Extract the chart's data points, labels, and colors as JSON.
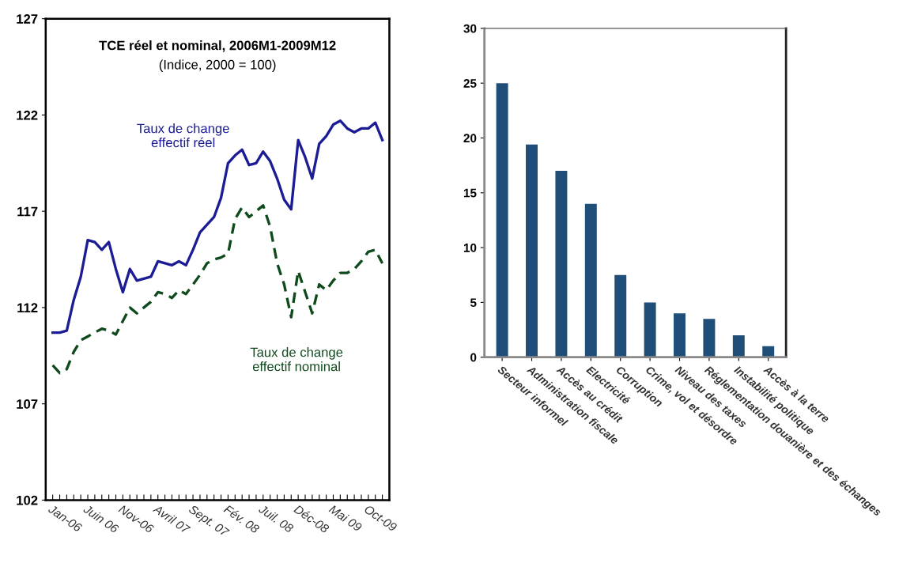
{
  "chart_data": [
    {
      "type": "line",
      "title": "TCE réel et nominal, 2006M1-2009M12",
      "subtitle": "(Indice, 2000 = 100)",
      "categories": [
        "Jan-06",
        null,
        null,
        null,
        null,
        "Juin 06",
        null,
        null,
        null,
        null,
        "Nov-06",
        null,
        null,
        null,
        null,
        "Avril 07",
        null,
        null,
        null,
        null,
        "Sept. 07",
        null,
        null,
        null,
        null,
        "Fév. 08",
        null,
        null,
        null,
        null,
        "Juil. 08",
        null,
        null,
        null,
        null,
        "Déc-08",
        null,
        null,
        null,
        null,
        "Mai 09",
        null,
        null,
        null,
        null,
        "Oct-09",
        null,
        null
      ],
      "series": [
        {
          "name": "Taux de change\neffectif réel",
          "color": "#1c1c94",
          "line_style": "solid",
          "values": [
            110.7,
            110.7,
            110.8,
            112.4,
            113.6,
            115.5,
            115.4,
            115.0,
            115.4,
            114.0,
            112.8,
            114.0,
            113.4,
            113.5,
            113.6,
            114.4,
            114.3,
            114.2,
            114.4,
            114.2,
            115.0,
            115.9,
            116.3,
            116.7,
            117.7,
            119.5,
            119.9,
            120.2,
            119.4,
            119.5,
            120.1,
            119.6,
            118.7,
            117.6,
            117.1,
            120.7,
            119.8,
            118.7,
            120.5,
            120.9,
            121.5,
            121.7,
            121.3,
            121.1,
            121.3,
            121.3,
            121.6,
            120.7
          ]
        },
        {
          "name": "Taux de change\neffectif nominal",
          "color": "#0f4a1c",
          "line_style": "dashed",
          "values": [
            109.0,
            108.6,
            108.8,
            109.7,
            110.3,
            110.5,
            110.7,
            110.9,
            110.8,
            110.6,
            111.3,
            112.0,
            111.7,
            112.0,
            112.3,
            112.8,
            112.7,
            112.5,
            112.9,
            112.7,
            113.2,
            113.7,
            114.3,
            114.5,
            114.6,
            114.8,
            116.6,
            117.2,
            116.7,
            117.0,
            117.3,
            116.2,
            114.3,
            113.2,
            111.5,
            113.9,
            112.8,
            111.7,
            113.2,
            112.9,
            113.4,
            113.8,
            113.8,
            114.0,
            114.4,
            114.9,
            115.0,
            114.3
          ]
        }
      ],
      "ylim": [
        102,
        127
      ],
      "yticks": [
        102,
        107,
        112,
        117,
        122,
        127
      ],
      "grid": false,
      "legend": false
    },
    {
      "type": "bar",
      "categories": [
        "Secteur informel",
        "Administration fiscale",
        "Accès au crédit",
        "Electricité",
        "Corruption",
        "Crime, vol et désordre",
        "Niveau des taxes",
        "Réglementation douanière et des échanges",
        "Instabilité politique",
        "Accès à la terre"
      ],
      "values": [
        25,
        19.4,
        17,
        14,
        7.5,
        5,
        4,
        3.5,
        2,
        1
      ],
      "color": "#1f4e79",
      "ylim": [
        0,
        30
      ],
      "yticks": [
        0,
        5,
        10,
        15,
        20,
        25,
        30
      ],
      "grid": false,
      "legend": false
    }
  ]
}
